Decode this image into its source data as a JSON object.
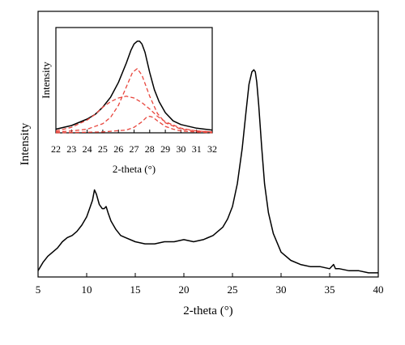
{
  "chart_data": [
    {
      "type": "line",
      "title": "",
      "xlabel": "2-theta (°)",
      "ylabel": "Intensity",
      "xlim": [
        5,
        40
      ],
      "ylim": [
        0,
        1
      ],
      "x_ticks": [
        5,
        10,
        15,
        20,
        25,
        30,
        35,
        40
      ],
      "y_ticks_shown": false,
      "grid": false,
      "legend": "none",
      "series": [
        {
          "color": "#000000",
          "x": [
            5.0,
            5.5,
            6.0,
            6.5,
            7.0,
            7.5,
            8.0,
            8.5,
            9.0,
            9.5,
            10.0,
            10.3,
            10.6,
            10.8,
            11.0,
            11.3,
            11.6,
            11.8,
            12.0,
            12.2,
            12.5,
            13.0,
            13.5,
            14.0,
            15.0,
            16.0,
            17.0,
            18.0,
            19.0,
            20.0,
            21.0,
            22.0,
            23.0,
            24.0,
            24.5,
            25.0,
            25.5,
            26.0,
            26.4,
            26.7,
            27.0,
            27.2,
            27.35,
            27.5,
            27.7,
            28.0,
            28.3,
            28.7,
            29.2,
            30.0,
            31.0,
            32.0,
            33.0,
            34.0,
            35.0,
            35.4,
            35.6,
            36.0,
            37.0,
            38.0,
            39.0,
            40.0
          ],
          "y": [
            0.03,
            0.07,
            0.1,
            0.12,
            0.14,
            0.17,
            0.19,
            0.2,
            0.22,
            0.25,
            0.29,
            0.33,
            0.37,
            0.42,
            0.4,
            0.35,
            0.33,
            0.33,
            0.34,
            0.31,
            0.27,
            0.23,
            0.2,
            0.19,
            0.17,
            0.16,
            0.16,
            0.17,
            0.17,
            0.18,
            0.17,
            0.18,
            0.2,
            0.24,
            0.28,
            0.34,
            0.45,
            0.62,
            0.8,
            0.93,
            0.99,
            1.0,
            0.99,
            0.94,
            0.83,
            0.63,
            0.45,
            0.31,
            0.21,
            0.12,
            0.08,
            0.06,
            0.05,
            0.05,
            0.04,
            0.06,
            0.04,
            0.04,
            0.03,
            0.03,
            0.02,
            0.02
          ]
        }
      ]
    },
    {
      "type": "line",
      "title": "",
      "xlabel": "2-theta (°)",
      "ylabel": "Intensity",
      "xlim": [
        22,
        32
      ],
      "ylim": [
        0,
        1
      ],
      "x_ticks": [
        22,
        23,
        24,
        25,
        26,
        27,
        28,
        29,
        30,
        31,
        32
      ],
      "y_ticks_shown": false,
      "grid": false,
      "legend": "none",
      "series": [
        {
          "style": "solid",
          "color": "#000000",
          "x": [
            22.0,
            23.0,
            24.0,
            24.5,
            25.0,
            25.5,
            26.0,
            26.5,
            26.8,
            27.0,
            27.2,
            27.35,
            27.5,
            27.7,
            28.0,
            28.3,
            28.6,
            29.0,
            29.5,
            30.0,
            31.0,
            32.0
          ],
          "y": [
            0.04,
            0.08,
            0.15,
            0.2,
            0.28,
            0.39,
            0.55,
            0.76,
            0.9,
            0.97,
            1.0,
            1.0,
            0.97,
            0.88,
            0.66,
            0.47,
            0.34,
            0.22,
            0.13,
            0.09,
            0.05,
            0.03
          ]
        },
        {
          "style": "dashed",
          "color": "#e8453c",
          "x": [
            22.0,
            23.0,
            24.0,
            25.0,
            25.5,
            26.0,
            26.5,
            26.9,
            27.2,
            27.5,
            28.0,
            28.5,
            29.0,
            30.0,
            31.0,
            32.0
          ],
          "y": [
            0.01,
            0.02,
            0.04,
            0.1,
            0.17,
            0.3,
            0.5,
            0.66,
            0.7,
            0.63,
            0.4,
            0.21,
            0.11,
            0.04,
            0.02,
            0.01
          ]
        },
        {
          "style": "dashed",
          "color": "#e8453c",
          "x": [
            22.0,
            23.0,
            24.0,
            24.5,
            25.0,
            25.5,
            26.0,
            26.5,
            27.0,
            27.5,
            28.0,
            28.5,
            29.0,
            30.0,
            31.0,
            32.0
          ],
          "y": [
            0.02,
            0.06,
            0.14,
            0.2,
            0.28,
            0.34,
            0.38,
            0.4,
            0.38,
            0.33,
            0.26,
            0.18,
            0.12,
            0.05,
            0.02,
            0.01
          ]
        },
        {
          "style": "dashed",
          "color": "#e8453c",
          "x": [
            22.0,
            25.0,
            26.5,
            27.0,
            27.5,
            27.8,
            28.0,
            28.2,
            28.5,
            29.0,
            29.5,
            30.0,
            31.0,
            32.0
          ],
          "y": [
            0.0,
            0.01,
            0.03,
            0.06,
            0.12,
            0.17,
            0.18,
            0.17,
            0.13,
            0.07,
            0.04,
            0.02,
            0.01,
            0.0
          ]
        }
      ]
    }
  ]
}
